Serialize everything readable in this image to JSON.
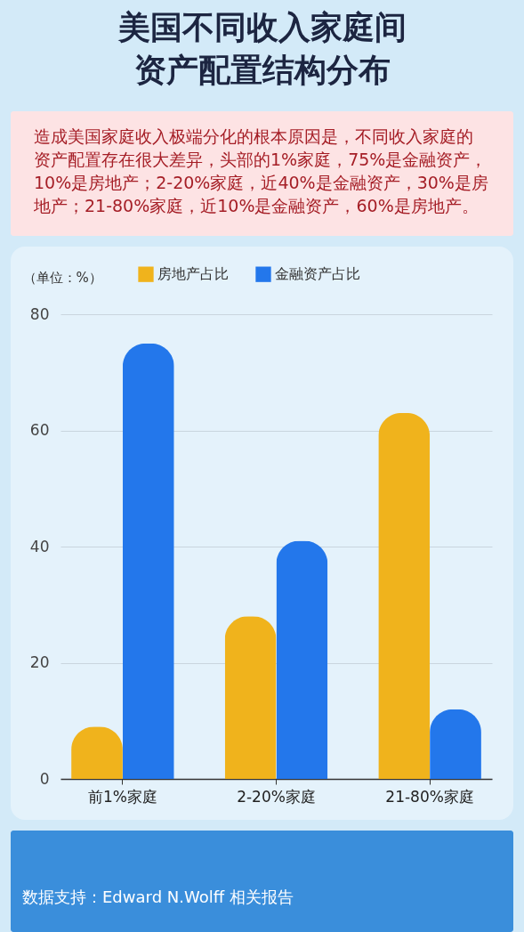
{
  "chart_data": {
    "type": "bar",
    "title": "美国不同收入家庭间资产配置结构分布",
    "subtitle": "造成美国家庭收入极端分化的根本原因是，不同收入家庭的资产配置存在很大差异，头部的1%家庭，75%是金融资产，10%是房地产；2-20%家庭，近40%是金融资产，30%是房地产；21-80%家庭，近10%是金融资产，60%是房地产。",
    "ylabel": "（单位：%）",
    "categories": [
      "前1%家庭",
      "2-20%家庭",
      "21-80%家庭"
    ],
    "series": [
      {
        "name": "房地产占比",
        "color": "#f0b31c",
        "values": [
          9,
          28,
          63
        ]
      },
      {
        "name": "金融资产占比",
        "color": "#2377eb",
        "values": [
          75,
          41,
          12
        ]
      }
    ],
    "ylim": [
      0,
      80
    ],
    "yticks": [
      0,
      20,
      40,
      60,
      80
    ],
    "grid": "y",
    "legend": "top",
    "annotations": [
      "数据支持：Edward N.Wolff 相关报告"
    ]
  }
}
